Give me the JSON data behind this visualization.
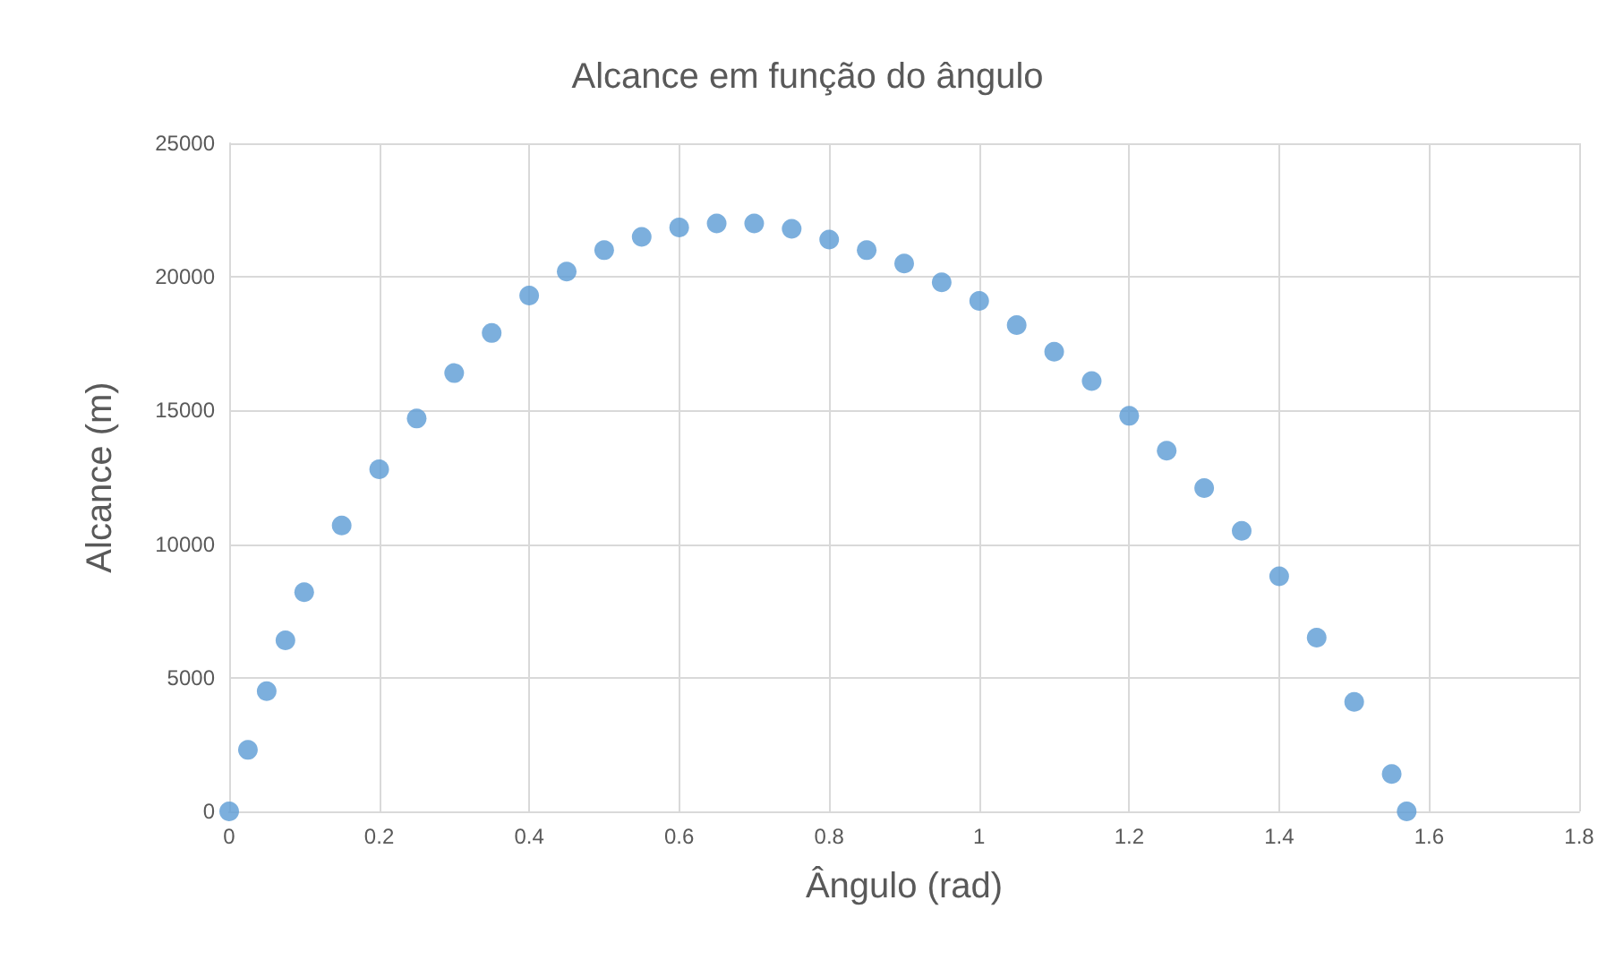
{
  "chart_data": {
    "type": "scatter",
    "title": "Alcance em função do ângulo",
    "xlabel": "Ângulo (rad)",
    "ylabel": "Alcance (m)",
    "x": [
      0,
      0.025,
      0.05,
      0.075,
      0.1,
      0.15,
      0.2,
      0.25,
      0.3,
      0.35,
      0.4,
      0.45,
      0.5,
      0.55,
      0.6,
      0.65,
      0.7,
      0.75,
      0.8,
      0.85,
      0.9,
      0.95,
      1.0,
      1.05,
      1.1,
      1.15,
      1.2,
      1.25,
      1.3,
      1.35,
      1.4,
      1.45,
      1.5,
      1.55,
      1.57
    ],
    "series": [
      {
        "color": "#5b9bd5",
        "values": [
          0,
          2300,
          4500,
          6400,
          8200,
          10700,
          12800,
          14700,
          16400,
          17900,
          19300,
          20200,
          21000,
          21500,
          21850,
          22000,
          22000,
          21800,
          21400,
          21000,
          20500,
          19800,
          19100,
          18200,
          17200,
          16100,
          14800,
          13500,
          12100,
          10500,
          8800,
          6500,
          4100,
          1400,
          0
        ]
      }
    ],
    "xlim": [
      0,
      1.8
    ],
    "xticks": [
      0,
      0.2,
      0.4,
      0.6,
      0.8,
      1,
      1.2,
      1.4,
      1.6,
      1.8
    ],
    "ylim": [
      0,
      25000
    ],
    "yticks": [
      0,
      5000,
      10000,
      15000,
      20000,
      25000
    ],
    "grid": true,
    "marker": "circle"
  }
}
